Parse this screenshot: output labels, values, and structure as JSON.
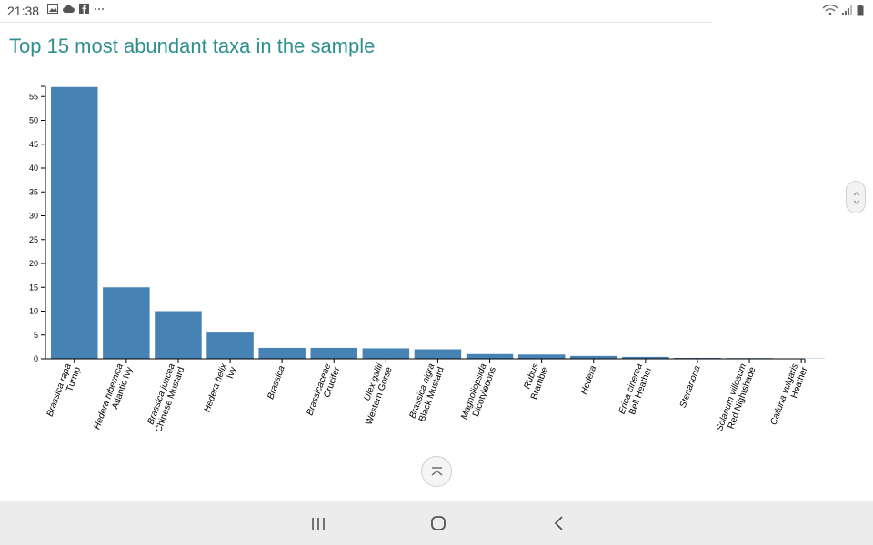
{
  "status_bar": {
    "time": "21:38",
    "left_icons": [
      "image-icon",
      "cloud-icon",
      "facebook-icon",
      "more-icon"
    ],
    "right_icons": [
      "wifi-icon",
      "signal-icon",
      "battery-icon"
    ]
  },
  "page": {
    "title": "Top 15 most abundant taxa in the sample"
  },
  "chart_data": {
    "type": "bar",
    "title": "",
    "xlabel": "",
    "ylabel": "",
    "ylim": [
      0,
      57
    ],
    "yticks": [
      0,
      5,
      10,
      15,
      20,
      25,
      30,
      35,
      40,
      45,
      50,
      55
    ],
    "grid": false,
    "bar_color": "#4682b4",
    "categories": [
      {
        "line1": "Brassica rapa",
        "line2": "Turnip",
        "italic1": true
      },
      {
        "line1": "Hedera hibernica",
        "line2": "Atlantic Ivy",
        "italic1": true
      },
      {
        "line1": "Brassica juncea",
        "line2": "Chinese Mustard",
        "italic1": true
      },
      {
        "line1": "Hedera helix",
        "line2": "Ivy",
        "italic1": true
      },
      {
        "line1": "Brassica",
        "line2": "",
        "italic1": true
      },
      {
        "line1": "Brassicaceae",
        "line2": "Crucifer",
        "italic1": true
      },
      {
        "line1": "Ulex gallii",
        "line2": "Western Gorse",
        "italic1": true
      },
      {
        "line1": "Brassica nigra",
        "line2": "Black Mustard",
        "italic1": true
      },
      {
        "line1": "Magnoliopsida",
        "line2": "Dicotyledons",
        "italic1": true
      },
      {
        "line1": "Rubus",
        "line2": "Bramble",
        "italic1": true
      },
      {
        "line1": "Hedera",
        "line2": "",
        "italic1": true
      },
      {
        "line1": "Erica cinerea",
        "line2": "Bell Heather",
        "italic1": true
      },
      {
        "line1": "Stenanona",
        "line2": "",
        "italic1": true
      },
      {
        "line1": "Solanum villosum",
        "line2": "Red Nightshade",
        "italic1": true
      },
      {
        "line1": "Calluna vulgaris",
        "line2": "Heather",
        "italic1": true
      }
    ],
    "values": [
      57,
      15,
      10,
      5.5,
      2.3,
      2.3,
      2.2,
      2,
      1,
      0.9,
      0.6,
      0.4,
      0.2,
      0.15,
      0.05
    ]
  },
  "navigation": {
    "buttons": [
      "recent-apps-icon",
      "home-icon",
      "back-icon"
    ]
  }
}
